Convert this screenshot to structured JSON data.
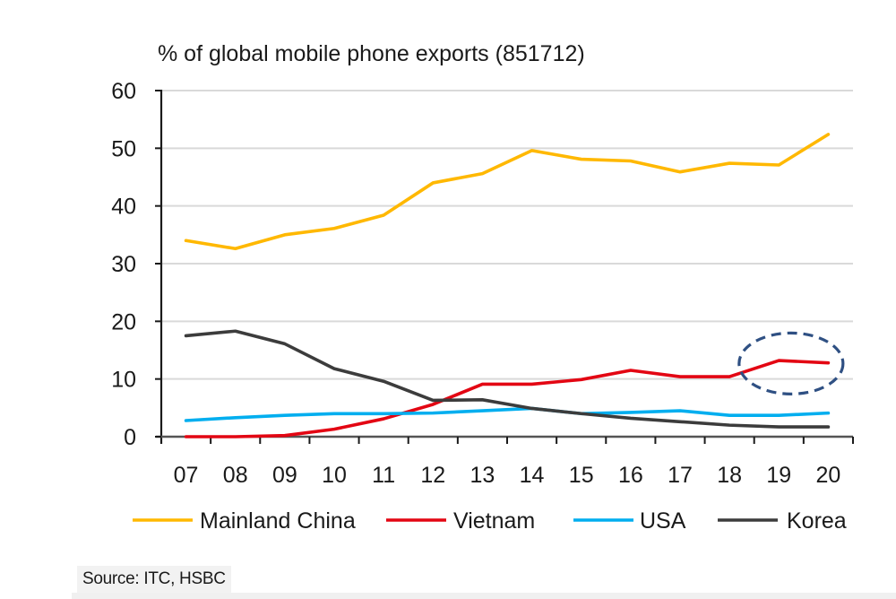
{
  "chart_data": {
    "type": "line",
    "title": "% of global mobile phone exports (851712)",
    "xlabel": "",
    "ylabel": "",
    "categories": [
      "07",
      "08",
      "09",
      "10",
      "11",
      "12",
      "13",
      "14",
      "15",
      "16",
      "17",
      "18",
      "19",
      "20"
    ],
    "ylim": [
      0,
      60
    ],
    "yticks": [
      "0",
      "10",
      "20",
      "30",
      "40",
      "50",
      "60"
    ],
    "grid": true,
    "legend_position": "bottom",
    "series": [
      {
        "name": "Mainland China",
        "color": "#FFB800",
        "values": [
          34.0,
          32.6,
          35.0,
          36.1,
          38.4,
          44.0,
          45.6,
          49.6,
          48.1,
          47.8,
          45.9,
          47.4,
          47.1,
          52.4
        ]
      },
      {
        "name": "Vietnam",
        "color": "#E30613",
        "values": [
          0.0,
          0.0,
          0.2,
          1.3,
          3.1,
          5.6,
          9.1,
          9.1,
          9.9,
          11.5,
          10.4,
          10.4,
          13.2,
          12.8
        ]
      },
      {
        "name": "USA",
        "color": "#00AEEF",
        "values": [
          2.8,
          3.3,
          3.7,
          4.0,
          4.0,
          4.1,
          4.5,
          4.9,
          4.0,
          4.2,
          4.5,
          3.7,
          3.7,
          4.1
        ]
      },
      {
        "name": "Korea",
        "color": "#3C3C3C",
        "values": [
          17.5,
          18.3,
          16.1,
          11.8,
          9.6,
          6.3,
          6.4,
          4.9,
          4.0,
          3.2,
          2.6,
          2.0,
          1.7,
          1.7
        ]
      }
    ],
    "annotations": [
      {
        "type": "dashed-ellipse",
        "color": "#2F5083",
        "highlights": "Vietnam",
        "x_range": [
          "19",
          "20"
        ],
        "y_value": 13
      }
    ]
  },
  "source": "Source: ITC, HSBC"
}
